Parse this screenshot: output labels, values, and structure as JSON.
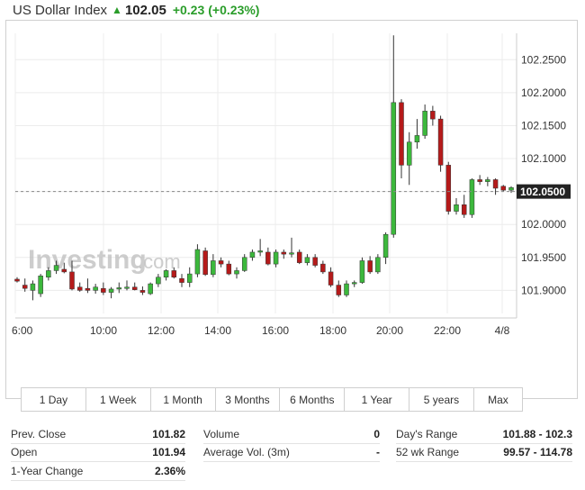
{
  "header": {
    "name": "US Dollar Index",
    "price": "102.05",
    "change": "+0.23",
    "change_pct": "(+0.23%)"
  },
  "chart_data": {
    "type": "candlestick",
    "y_ticks": [
      "102.2500",
      "102.2000",
      "102.1500",
      "102.1000",
      "102.0500",
      "102.0000",
      "101.9500",
      "101.9000"
    ],
    "ylim": [
      101.865,
      102.29
    ],
    "current_price": "102.0500",
    "x_ticks": [
      "06:00",
      "10:00",
      "12:00",
      "14:00",
      "16:00",
      "18:00",
      "20:00",
      "22:00",
      "4/8"
    ],
    "candles": [
      {
        "o": 101.917,
        "h": 101.92,
        "l": 101.912,
        "c": 101.914
      },
      {
        "o": 101.908,
        "h": 101.918,
        "l": 101.898,
        "c": 101.903
      },
      {
        "o": 101.9,
        "h": 101.915,
        "l": 101.885,
        "c": 101.91
      },
      {
        "o": 101.895,
        "h": 101.925,
        "l": 101.89,
        "c": 101.922
      },
      {
        "o": 101.92,
        "h": 101.935,
        "l": 101.915,
        "c": 101.93
      },
      {
        "o": 101.93,
        "h": 101.945,
        "l": 101.925,
        "c": 101.938
      },
      {
        "o": 101.932,
        "h": 101.942,
        "l": 101.926,
        "c": 101.928
      },
      {
        "o": 101.928,
        "h": 101.945,
        "l": 101.9,
        "c": 101.902
      },
      {
        "o": 101.905,
        "h": 101.912,
        "l": 101.898,
        "c": 101.9
      },
      {
        "o": 101.903,
        "h": 101.918,
        "l": 101.896,
        "c": 101.9
      },
      {
        "o": 101.9,
        "h": 101.91,
        "l": 101.895,
        "c": 101.905
      },
      {
        "o": 101.903,
        "h": 101.912,
        "l": 101.893,
        "c": 101.897
      },
      {
        "o": 101.897,
        "h": 101.905,
        "l": 101.888,
        "c": 101.902
      },
      {
        "o": 101.902,
        "h": 101.912,
        "l": 101.896,
        "c": 101.904
      },
      {
        "o": 101.904,
        "h": 101.915,
        "l": 101.9,
        "c": 101.905
      },
      {
        "o": 101.905,
        "h": 101.912,
        "l": 101.9,
        "c": 101.901
      },
      {
        "o": 101.9,
        "h": 101.906,
        "l": 101.893,
        "c": 101.897
      },
      {
        "o": 101.895,
        "h": 101.912,
        "l": 101.893,
        "c": 101.91
      },
      {
        "o": 101.91,
        "h": 101.925,
        "l": 101.905,
        "c": 101.92
      },
      {
        "o": 101.92,
        "h": 101.932,
        "l": 101.915,
        "c": 101.93
      },
      {
        "o": 101.93,
        "h": 101.935,
        "l": 101.918,
        "c": 101.92
      },
      {
        "o": 101.918,
        "h": 101.925,
        "l": 101.905,
        "c": 101.912
      },
      {
        "o": 101.912,
        "h": 101.935,
        "l": 101.905,
        "c": 101.925
      },
      {
        "o": 101.925,
        "h": 101.97,
        "l": 101.92,
        "c": 101.962
      },
      {
        "o": 101.96,
        "h": 101.965,
        "l": 101.922,
        "c": 101.924
      },
      {
        "o": 101.924,
        "h": 101.955,
        "l": 101.92,
        "c": 101.945
      },
      {
        "o": 101.945,
        "h": 101.95,
        "l": 101.935,
        "c": 101.94
      },
      {
        "o": 101.94,
        "h": 101.945,
        "l": 101.923,
        "c": 101.925
      },
      {
        "o": 101.925,
        "h": 101.935,
        "l": 101.918,
        "c": 101.93
      },
      {
        "o": 101.93,
        "h": 101.955,
        "l": 101.928,
        "c": 101.95
      },
      {
        "o": 101.95,
        "h": 101.962,
        "l": 101.945,
        "c": 101.958
      },
      {
        "o": 101.958,
        "h": 101.978,
        "l": 101.952,
        "c": 101.96
      },
      {
        "o": 101.958,
        "h": 101.965,
        "l": 101.938,
        "c": 101.94
      },
      {
        "o": 101.94,
        "h": 101.962,
        "l": 101.935,
        "c": 101.958
      },
      {
        "o": 101.958,
        "h": 101.962,
        "l": 101.948,
        "c": 101.955
      },
      {
        "o": 101.956,
        "h": 101.98,
        "l": 101.95,
        "c": 101.957
      },
      {
        "o": 101.958,
        "h": 101.962,
        "l": 101.94,
        "c": 101.942
      },
      {
        "o": 101.942,
        "h": 101.955,
        "l": 101.938,
        "c": 101.95
      },
      {
        "o": 101.95,
        "h": 101.955,
        "l": 101.935,
        "c": 101.938
      },
      {
        "o": 101.94,
        "h": 101.945,
        "l": 101.925,
        "c": 101.928
      },
      {
        "o": 101.928,
        "h": 101.935,
        "l": 101.905,
        "c": 101.908
      },
      {
        "o": 101.908,
        "h": 101.915,
        "l": 101.89,
        "c": 101.893
      },
      {
        "o": 101.893,
        "h": 101.915,
        "l": 101.89,
        "c": 101.91
      },
      {
        "o": 101.91,
        "h": 101.915,
        "l": 101.905,
        "c": 101.912
      },
      {
        "o": 101.912,
        "h": 101.95,
        "l": 101.91,
        "c": 101.945
      },
      {
        "o": 101.945,
        "h": 101.952,
        "l": 101.925,
        "c": 101.928
      },
      {
        "o": 101.928,
        "h": 101.955,
        "l": 101.925,
        "c": 101.95
      },
      {
        "o": 101.95,
        "h": 101.988,
        "l": 101.94,
        "c": 101.985
      },
      {
        "o": 101.985,
        "h": 102.287,
        "l": 101.98,
        "c": 102.185
      },
      {
        "o": 102.185,
        "h": 102.19,
        "l": 102.07,
        "c": 102.09
      },
      {
        "o": 102.09,
        "h": 102.14,
        "l": 102.06,
        "c": 102.125
      },
      {
        "o": 102.125,
        "h": 102.16,
        "l": 102.115,
        "c": 102.135
      },
      {
        "o": 102.135,
        "h": 102.182,
        "l": 102.13,
        "c": 102.172
      },
      {
        "o": 102.172,
        "h": 102.18,
        "l": 102.15,
        "c": 102.16
      },
      {
        "o": 102.16,
        "h": 102.165,
        "l": 102.08,
        "c": 102.09
      },
      {
        "o": 102.09,
        "h": 102.095,
        "l": 102.015,
        "c": 102.02
      },
      {
        "o": 102.02,
        "h": 102.04,
        "l": 102.015,
        "c": 102.03
      },
      {
        "o": 102.03,
        "h": 102.045,
        "l": 102.01,
        "c": 102.015
      },
      {
        "o": 102.015,
        "h": 102.07,
        "l": 102.01,
        "c": 102.068
      },
      {
        "o": 102.068,
        "h": 102.075,
        "l": 102.06,
        "c": 102.065
      },
      {
        "o": 102.065,
        "h": 102.072,
        "l": 102.058,
        "c": 102.068
      },
      {
        "o": 102.068,
        "h": 102.07,
        "l": 102.045,
        "c": 102.055
      },
      {
        "o": 102.058,
        "h": 102.06,
        "l": 102.05,
        "c": 102.052
      },
      {
        "o": 102.052,
        "h": 102.058,
        "l": 102.048,
        "c": 102.056
      }
    ],
    "colors": {
      "up": "#3cb83c",
      "down": "#b51a1a",
      "wick": "#333333",
      "grid": "#ececec",
      "axis_text": "#333333"
    }
  },
  "watermark": {
    "logo": "Investing",
    "suffix": ".com"
  },
  "timeframes": [
    "1 Day",
    "1 Week",
    "1 Month",
    "3 Months",
    "6 Months",
    "1 Year",
    "5 years",
    "Max"
  ],
  "stats": {
    "col1": [
      {
        "label": "Prev. Close",
        "value": "101.82"
      },
      {
        "label": "Open",
        "value": "101.94"
      },
      {
        "label": "1-Year Change",
        "value": "2.36%"
      }
    ],
    "col2": [
      {
        "label": "Volume",
        "value": "0"
      },
      {
        "label": "Average Vol. (3m)",
        "value": "-"
      }
    ],
    "col3": [
      {
        "label": "Day's Range",
        "value": "101.88 - 102.3"
      },
      {
        "label": "52 wk Range",
        "value": "99.57 - 114.78"
      }
    ]
  }
}
